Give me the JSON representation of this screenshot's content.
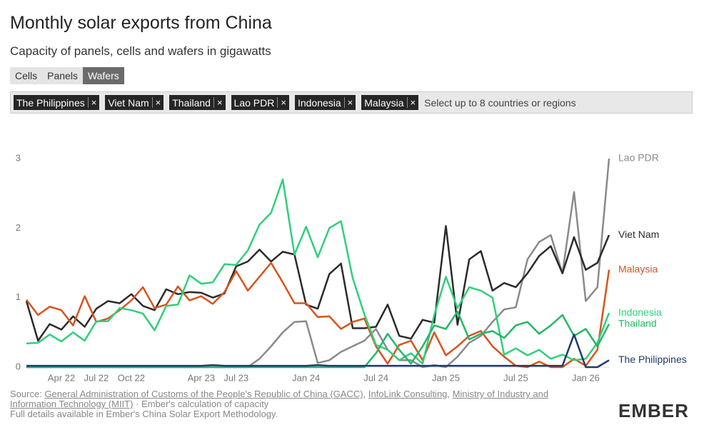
{
  "chart_data": {
    "type": "line",
    "title": "Monthly solar exports from China",
    "subtitle": "Capacity of panels, cells and wafers in gigawatts",
    "categories": [
      null,
      null,
      null,
      "Apr 22",
      null,
      null,
      "Jul 22",
      null,
      null,
      "Oct 22",
      null,
      null,
      null,
      null,
      null,
      "Apr 23",
      null,
      null,
      "Jul 23",
      null,
      null,
      null,
      null,
      null,
      "Jan 24",
      null,
      null,
      null,
      null,
      null,
      "Jul 24",
      null,
      null,
      null,
      null,
      null,
      "Jan 25",
      null,
      null,
      null,
      null,
      null,
      "Jul 25",
      null,
      null,
      null,
      null,
      null,
      "Jan 26",
      null,
      null
    ],
    "ylim": [
      0,
      3
    ],
    "yticks": [
      0,
      1,
      2,
      3
    ],
    "grid": false,
    "series": [
      {
        "name": "Lao PDR",
        "color": "#8a8a8a",
        "values": [
          0,
          0,
          0,
          0,
          0,
          0,
          0,
          0,
          0,
          0,
          0,
          0,
          0,
          0,
          0,
          0,
          0,
          0,
          0,
          0,
          0.12,
          0.3,
          0.5,
          0.65,
          0.66,
          0.06,
          0.1,
          0.22,
          0.3,
          0.38,
          0.55,
          0.25,
          0.1,
          0.1,
          0,
          0.03,
          0,
          0.15,
          0.35,
          0.45,
          0.65,
          0.83,
          0.86,
          1.55,
          1.8,
          1.9,
          1.35,
          2.52,
          0.95,
          1.15,
          3.0
        ]
      },
      {
        "name": "Viet Nam",
        "color": "#2b2b2b",
        "values": [
          0.95,
          0.38,
          0.62,
          0.54,
          0.73,
          0.58,
          0.84,
          0.95,
          0.92,
          1.05,
          0.88,
          0.82,
          1.12,
          1.05,
          1.08,
          1.07,
          1.0,
          1.06,
          1.45,
          1.52,
          1.69,
          1.52,
          1.66,
          1.62,
          0.9,
          0.84,
          1.34,
          1.49,
          0.56,
          0.56,
          0.58,
          0.9,
          0.45,
          0.41,
          0.68,
          0.64,
          2.03,
          0.61,
          1.55,
          1.67,
          1.1,
          1.21,
          1.15,
          1.35,
          1.6,
          1.74,
          1.35,
          1.87,
          1.4,
          1.5,
          1.9
        ]
      },
      {
        "name": "Malaysia",
        "color": "#d9531e",
        "values": [
          0.97,
          0.75,
          0.87,
          0.82,
          0.6,
          1.02,
          0.65,
          0.7,
          0.82,
          0.96,
          1.15,
          0.85,
          0.9,
          1.16,
          0.96,
          1.02,
          0.91,
          1.08,
          1.38,
          1.1,
          1.3,
          1.5,
          1.22,
          0.92,
          0.92,
          0.72,
          0.73,
          0.55,
          0.65,
          0.7,
          0.3,
          0.05,
          0.32,
          0.38,
          0.1,
          0.5,
          0.17,
          0.3,
          0.45,
          0.52,
          0.3,
          0.15,
          0.02,
          0,
          0.08,
          0,
          0,
          0.12,
          0.02,
          0.25,
          1.4
        ]
      },
      {
        "name": "Indonesia",
        "color": "#2fd07a",
        "values": [
          0.34,
          0.35,
          0.47,
          0.37,
          0.5,
          0.38,
          0.66,
          0.66,
          0.85,
          0.82,
          0.77,
          0.53,
          0.88,
          0.9,
          1.32,
          1.2,
          1.22,
          1.48,
          1.47,
          1.68,
          2.05,
          2.22,
          2.7,
          1.62,
          2.02,
          1.58,
          2.0,
          2.1,
          1.28,
          0.76,
          0.32,
          0.25,
          0.1,
          0.2,
          0.05,
          0.75,
          1.3,
          0.85,
          1.15,
          1.1,
          1.0,
          0.18,
          0.27,
          0.17,
          0.25,
          0.12,
          0.18,
          0.1,
          0.12,
          0.35,
          0.78
        ]
      },
      {
        "name": "Thailand",
        "color": "#22b866",
        "values": [
          0,
          0,
          0,
          0,
          0,
          0,
          0,
          0,
          0,
          0,
          0,
          0,
          0,
          0,
          0,
          0,
          0,
          0,
          0,
          0,
          0,
          0,
          0,
          0,
          0,
          0,
          0,
          0,
          0,
          0,
          0.2,
          0.48,
          0.25,
          0.05,
          0.3,
          0.6,
          0.55,
          0.8,
          0.4,
          0.48,
          0.52,
          0.42,
          0.6,
          0.65,
          0.48,
          0.6,
          0.75,
          0.45,
          0.55,
          0.3,
          0.62
        ]
      },
      {
        "name": "The Philippines",
        "color": "#1f3a6e",
        "values": [
          0.02,
          0.02,
          0.02,
          0.02,
          0.02,
          0.02,
          0.02,
          0.02,
          0.02,
          0.02,
          0.02,
          0.02,
          0.02,
          0.02,
          0.02,
          0.02,
          0.03,
          0.02,
          0.02,
          0.02,
          0.02,
          0.02,
          0.02,
          0.02,
          0.02,
          0.03,
          0.02,
          0.02,
          0.02,
          0.02,
          0.02,
          0.02,
          0.02,
          0.02,
          0.02,
          0.02,
          0.02,
          0.02,
          0.02,
          0.02,
          0.02,
          0.02,
          0.02,
          0.02,
          0.02,
          0.02,
          0.02,
          0.47,
          0,
          0,
          0.1
        ]
      }
    ]
  },
  "tabs": [
    "Cells",
    "Panels",
    "Wafers"
  ],
  "active_tab": "Wafers",
  "filters": [
    "The Philippines",
    "Viet Nam",
    "Thailand",
    "Lao PDR",
    "Indonesia",
    "Malaysia"
  ],
  "filter_placeholder": "Select up to 8 countries or regions",
  "source": {
    "label": "Source:",
    "links": [
      "General Administration of Customs of the People's Republic of China (GACC)",
      "InfoLink Consulting",
      "Ministry of Industry and Information Technology (MIIT)"
    ],
    "separator": ",",
    "note": "· Ember's calculation of capacity",
    "details": "Full details available in Ember's China Solar Export Methodology."
  },
  "logo": "EMBER"
}
